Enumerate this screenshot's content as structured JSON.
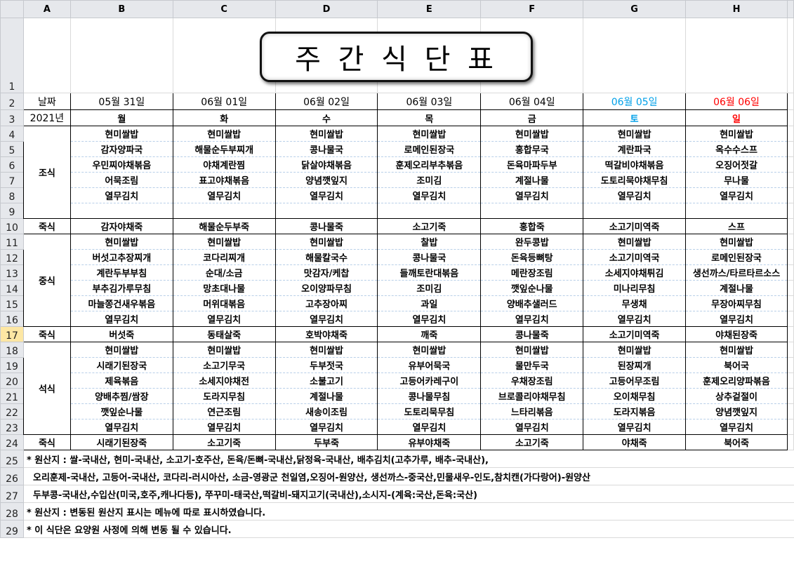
{
  "columns": [
    "A",
    "B",
    "C",
    "D",
    "E",
    "F",
    "G",
    "H"
  ],
  "title": "주 간 식 단 표",
  "date_label": "날짜",
  "year_label": "2021년",
  "colors": {
    "saturday": "#00a0e8",
    "sunday": "#ff0000",
    "selected_header": "#fde7a4"
  },
  "selected_row": 17,
  "days": [
    {
      "date": "05월 31일",
      "weekday": "월",
      "color": "#000000"
    },
    {
      "date": "06월 01일",
      "weekday": "화",
      "color": "#000000"
    },
    {
      "date": "06월 02일",
      "weekday": "수",
      "color": "#000000"
    },
    {
      "date": "06월 03일",
      "weekday": "목",
      "color": "#000000"
    },
    {
      "date": "06월 04일",
      "weekday": "금",
      "color": "#000000"
    },
    {
      "date": "06월 05일",
      "weekday": "토",
      "color": "#00a0e8"
    },
    {
      "date": "06월 06일",
      "weekday": "일",
      "color": "#ff0000"
    }
  ],
  "meals": [
    {
      "label": "조식",
      "rows": [
        [
          "현미쌀밥",
          "현미쌀밥",
          "현미쌀밥",
          "현미쌀밥",
          "현미쌀밥",
          "현미쌀밥",
          "현미쌀밥"
        ],
        [
          "감자양파국",
          "해물순두부찌개",
          "콩나물국",
          "로메인된장국",
          "홍합무국",
          "계란파국",
          "옥수수스프"
        ],
        [
          "우민찌야채볶음",
          "야채계란찜",
          "닭살야채볶음",
          "훈제오리부추볶음",
          "돈육마파두부",
          "떡갈비야채볶음",
          "오징어젓갈"
        ],
        [
          "어묵조림",
          "표고야채볶음",
          "양념깻잎지",
          "조미김",
          "계절나물",
          "도토리묵야채무침",
          "무나물"
        ],
        [
          "열무김치",
          "열무김치",
          "열무김치",
          "열무김치",
          "열무김치",
          "열무김치",
          "열무김치"
        ],
        [
          "",
          "",
          "",
          "",
          "",
          "",
          ""
        ]
      ]
    },
    {
      "label": "죽식",
      "rows": [
        [
          "감자야채죽",
          "해물순두부죽",
          "콩나물죽",
          "소고기죽",
          "홍합죽",
          "소고기미역죽",
          "스프"
        ]
      ]
    },
    {
      "label": "중식",
      "rows": [
        [
          "현미쌀밥",
          "현미쌀밥",
          "현미쌀밥",
          "찰밥",
          "완두콩밥",
          "현미쌀밥",
          "현미쌀밥"
        ],
        [
          "버섯고추장찌개",
          "코다리찌개",
          "해물칼국수",
          "콩나물국",
          "돈육등뼈탕",
          "소고기미역국",
          "로메인된장국"
        ],
        [
          "계란두부부침",
          "순대/소금",
          "맛감자/케찹",
          "들깨토란대볶음",
          "메란장조림",
          "소세지야채튀김",
          "생선까스/타르타르소스"
        ],
        [
          "부추김가루무침",
          "망초대나물",
          "오이양파무침",
          "조미김",
          "깻잎순나물",
          "미나리무침",
          "계절나물"
        ],
        [
          "마늘쫑건새우볶음",
          "머위대볶음",
          "고추장아찌",
          "과일",
          "양배추샐러드",
          "무생채",
          "무장아찌무침"
        ],
        [
          "열무김치",
          "열무김치",
          "열무김치",
          "열무김치",
          "열무김치",
          "열무김치",
          "열무김치"
        ]
      ]
    },
    {
      "label": "죽식",
      "rows": [
        [
          "버섯죽",
          "동태살죽",
          "호박야채죽",
          "깨죽",
          "콩나물죽",
          "소고기미역죽",
          "야채된장죽"
        ]
      ]
    },
    {
      "label": "석식",
      "rows": [
        [
          "현미쌀밥",
          "현미쌀밥",
          "현미쌀밥",
          "현미쌀밥",
          "현미쌀밥",
          "현미쌀밥",
          "현미쌀밥"
        ],
        [
          "시래기된장국",
          "소고기무국",
          "두부젓국",
          "유부어묵국",
          "물만두국",
          "된장찌개",
          "북어국"
        ],
        [
          "제육볶음",
          "소세지야채전",
          "소불고기",
          "고등어카레구이",
          "우채장조림",
          "고등어무조림",
          "훈제오리양파볶음"
        ],
        [
          "양배추찜/쌈장",
          "도라지무침",
          "계절나물",
          "콩나물무침",
          "브로콜리야채무침",
          "오이채무침",
          "상추겉절이"
        ],
        [
          "깻잎순나물",
          "연근조림",
          "새송이조림",
          "도토리묵무침",
          "느타리볶음",
          "도라지볶음",
          "양념깻잎지"
        ],
        [
          "열무김치",
          "열무김치",
          "열무김치",
          "열무김치",
          "열무김치",
          "열무김치",
          "열무김치"
        ]
      ]
    },
    {
      "label": "죽식",
      "rows": [
        [
          "시래기된장죽",
          "소고기죽",
          "두부죽",
          "유부야채죽",
          "소고기죽",
          "야채죽",
          "북어죽"
        ]
      ]
    }
  ],
  "notes": [
    "* 원산지 : 쌀-국내산, 현미-국내산, 소고기-호주산, 돈육/돈뼈-국내산,닭정육-국내산, 배추김치(고추가루, 배추-국내산),",
    "  오리훈제-국내산, 고등어-국내산, 코다리-러시아산, 소금-영광군 천일염,오징어-원양산, 생선까스-중국산,민물새우-인도,참치캔(가다랑어)-원양산",
    "  두부콩-국내산,수입산(미국,호주,캐나다등), 쭈꾸미-태국산,떡갈비-돼지고기(국내산),소시지-(계육:국산,돈육:국산)",
    "* 원산지 : 변동된 원산지 표시는 메뉴에 따로 표시하였습니다.",
    "* 이 식단은 요양원 사정에 의해 변동 될 수 있습니다."
  ]
}
